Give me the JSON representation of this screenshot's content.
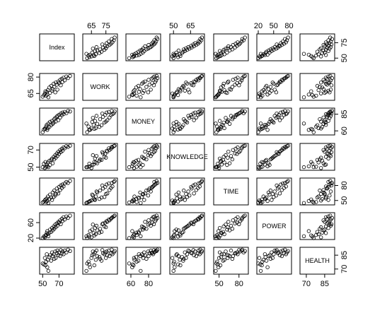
{
  "chart_data": {
    "type": "scatter",
    "variables": [
      "Index",
      "WORK",
      "MONEY",
      "KNOWLEDGE",
      "TIME",
      "POWER",
      "HEALTH"
    ],
    "diagonal_labels": [
      "Index",
      "WORK",
      "MONEY",
      "KNOWLEDGE",
      "TIME",
      "POWER",
      "HEALTH"
    ],
    "ranges": [
      [
        48,
        87
      ],
      [
        60,
        82
      ],
      [
        56,
        92
      ],
      [
        48,
        76
      ],
      [
        44,
        92
      ],
      [
        20,
        82
      ],
      [
        66,
        92
      ]
    ],
    "axis_ticks": {
      "top": [
        {
          "col": 1,
          "values": [
            65,
            75
          ]
        },
        {
          "col": 3,
          "values": [
            50,
            65
          ]
        },
        {
          "col": 5,
          "values": [
            20,
            50,
            80
          ]
        }
      ],
      "bottom": [
        {
          "col": 0,
          "values": [
            50,
            70
          ]
        },
        {
          "col": 2,
          "values": [
            60,
            80
          ]
        },
        {
          "col": 4,
          "values": [
            50,
            80
          ]
        },
        {
          "col": 6,
          "values": [
            70,
            85
          ]
        }
      ],
      "left": [
        {
          "row": 1,
          "values": [
            65,
            80
          ]
        },
        {
          "row": 3,
          "values": [
            50,
            70
          ]
        },
        {
          "row": 5,
          "values": [
            20,
            60
          ]
        }
      ],
      "right": [
        {
          "row": 0,
          "values": [
            50,
            75
          ]
        },
        {
          "row": 2,
          "values": [
            60,
            85
          ]
        },
        {
          "row": 4,
          "values": [
            50,
            80
          ]
        },
        {
          "row": 6,
          "values": [
            70,
            85
          ]
        }
      ]
    },
    "observations": [
      [
        50.0,
        62.0,
        58.0,
        50.0,
        46.0,
        20.0,
        76.0
      ],
      [
        51.5,
        63.5,
        62.0,
        54.0,
        48.0,
        24.0,
        75.0
      ],
      [
        52.7,
        65.0,
        63.5,
        49.0,
        50.0,
        22.0,
        82.0
      ],
      [
        53.4,
        67.0,
        63.0,
        56.0,
        52.0,
        27.0,
        74.0
      ],
      [
        54.2,
        63.0,
        66.5,
        50.5,
        47.0,
        28.0,
        78.0
      ],
      [
        55.0,
        66.5,
        69.0,
        53.0,
        54.0,
        33.0,
        86.0
      ],
      [
        55.6,
        64.0,
        61.5,
        51.0,
        49.0,
        38.0,
        72.0
      ],
      [
        56.3,
        68.0,
        64.0,
        55.5,
        58.0,
        30.0,
        80.0
      ],
      [
        57.0,
        61.5,
        71.0,
        50.0,
        45.0,
        25.0,
        68.0
      ],
      [
        58.2,
        70.5,
        66.0,
        57.5,
        53.0,
        34.0,
        83.0
      ],
      [
        59.0,
        65.5,
        73.5,
        52.5,
        62.0,
        42.0,
        85.0
      ],
      [
        60.4,
        72.0,
        68.5,
        58.5,
        56.0,
        36.0,
        79.0
      ],
      [
        61.5,
        67.5,
        75.0,
        60.0,
        51.0,
        46.0,
        88.0
      ],
      [
        62.3,
        69.0,
        70.5,
        54.5,
        66.0,
        40.0,
        84.0
      ],
      [
        63.5,
        74.0,
        72.5,
        62.0,
        57.0,
        50.0,
        86.0
      ],
      [
        64.2,
        71.0,
        77.5,
        59.0,
        70.0,
        44.0,
        81.0
      ],
      [
        65.4,
        66.0,
        79.5,
        64.0,
        60.0,
        55.0,
        89.0
      ],
      [
        66.0,
        75.0,
        74.0,
        61.0,
        63.0,
        48.0,
        82.0
      ],
      [
        67.3,
        73.0,
        81.0,
        66.0,
        74.0,
        58.0,
        87.0
      ],
      [
        68.0,
        68.5,
        82.5,
        63.0,
        68.0,
        52.0,
        90.0
      ],
      [
        69.2,
        76.0,
        76.0,
        68.0,
        64.0,
        62.0,
        85.0
      ],
      [
        70.0,
        74.5,
        84.0,
        65.5,
        77.0,
        60.0,
        88.0
      ],
      [
        71.4,
        77.5,
        80.0,
        70.0,
        71.0,
        66.0,
        84.0
      ],
      [
        72.2,
        72.5,
        86.0,
        67.5,
        80.0,
        56.0,
        90.5
      ],
      [
        73.5,
        78.5,
        83.5,
        71.5,
        75.0,
        70.0,
        87.0
      ],
      [
        74.3,
        75.5,
        87.5,
        69.0,
        82.0,
        64.0,
        89.0
      ],
      [
        75.6,
        79.5,
        85.0,
        73.0,
        78.0,
        74.0,
        86.0
      ],
      [
        77.0,
        77.0,
        88.5,
        72.0,
        84.0,
        68.0,
        90.0
      ],
      [
        79.0,
        80.5,
        86.5,
        74.5,
        87.0,
        76.0,
        88.0
      ],
      [
        81.0,
        79.0,
        90.0,
        73.5,
        85.0,
        72.0,
        91.0
      ],
      [
        83.5,
        81.0,
        89.0,
        75.0,
        89.0,
        78.0,
        89.5
      ]
    ]
  }
}
